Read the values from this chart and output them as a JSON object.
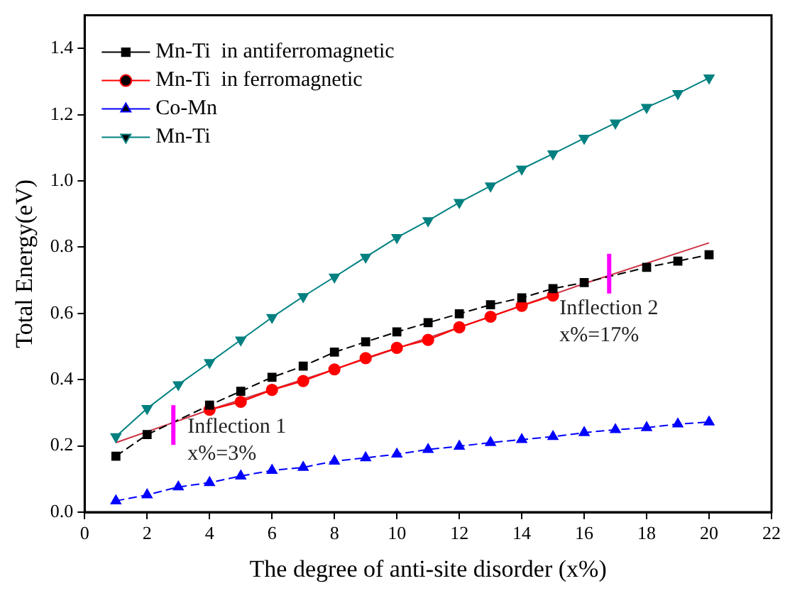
{
  "chart_data": {
    "type": "line",
    "xlabel": "The degree of anti-site disorder (x%)",
    "ylabel": "Total Energy(eV)",
    "xlim": [
      0,
      22
    ],
    "xticks": [
      0,
      2,
      4,
      6,
      8,
      10,
      12,
      14,
      16,
      18,
      20,
      22
    ],
    "ylim": [
      0,
      1.5
    ],
    "yticks": [
      {
        "value": 0,
        "label": "0.0"
      },
      {
        "value": 0.2,
        "label": "0.2"
      },
      {
        "value": 0.4,
        "label": "0.4"
      },
      {
        "value": 0.6,
        "label": "0.6"
      },
      {
        "value": 0.8,
        "label": "0.8"
      },
      {
        "value": 1,
        "label": "1.0"
      },
      {
        "value": 1.2,
        "label": "1.2"
      },
      {
        "value": 1.4,
        "label": "1.4"
      }
    ],
    "grid": false,
    "legend": "top left",
    "series": [
      {
        "name": "Mn-Ti  in antiferromagnetic",
        "color": "#000000",
        "marker": "square",
        "line_style": "dashed",
        "x": [
          1,
          2,
          4,
          5,
          6,
          7,
          8,
          9,
          10,
          11,
          12,
          13,
          14,
          15,
          16,
          18,
          19,
          20
        ],
        "values": [
          0.169,
          0.234,
          0.323,
          0.365,
          0.407,
          0.441,
          0.483,
          0.514,
          0.544,
          0.572,
          0.599,
          0.626,
          0.647,
          0.675,
          0.693,
          0.739,
          0.758,
          0.777
        ]
      },
      {
        "name": "Mn-Ti  in ferromagnetic",
        "color": "#ff0000",
        "marker": "circle",
        "line_style": "solid",
        "x": [
          4,
          5,
          6,
          7,
          8,
          9,
          10,
          11,
          12,
          13,
          14,
          15
        ],
        "values": [
          0.309,
          0.333,
          0.369,
          0.396,
          0.431,
          0.465,
          0.496,
          0.52,
          0.558,
          0.59,
          0.623,
          0.654
        ]
      },
      {
        "name": "Co-Mn",
        "color": "#0000ff",
        "marker": "triangle",
        "line_style": "dashed",
        "x": [
          1,
          2,
          3,
          4,
          5,
          6,
          7,
          8,
          9,
          10,
          11,
          12,
          13,
          14,
          15,
          16,
          17,
          18,
          19,
          20
        ],
        "values": [
          0.034,
          0.052,
          0.076,
          0.089,
          0.109,
          0.126,
          0.135,
          0.154,
          0.164,
          0.175,
          0.189,
          0.199,
          0.21,
          0.219,
          0.228,
          0.24,
          0.249,
          0.255,
          0.266,
          0.272
        ]
      },
      {
        "name": "Mn-Ti",
        "color": "#008080",
        "marker": "triangle-down",
        "line_style": "solid",
        "x": [
          1,
          2,
          3,
          4,
          5,
          6,
          7,
          8,
          9,
          10,
          11,
          12,
          13,
          14,
          15,
          16,
          17,
          18,
          19,
          20
        ],
        "values": [
          0.228,
          0.313,
          0.385,
          0.452,
          0.52,
          0.588,
          0.651,
          0.71,
          0.77,
          0.829,
          0.88,
          0.935,
          0.985,
          1.036,
          1.082,
          1.129,
          1.175,
          1.222,
          1.264,
          1.311
        ]
      },
      {
        "type": "line",
        "color": "#cc3344",
        "marker": "none",
        "line_style": "solid",
        "x": [
          1,
          4,
          8,
          12,
          16,
          20
        ],
        "values": [
          0.21,
          0.309,
          0.431,
          0.558,
          0.69,
          0.813
        ]
      }
    ],
    "annotations": [
      {
        "text": "Inflection 1\nx%=3%",
        "x": 2.84,
        "y": 0.263
      },
      {
        "text": "Inflection 2\nx%=17%",
        "x": 16.8,
        "y": 0.72
      }
    ]
  }
}
